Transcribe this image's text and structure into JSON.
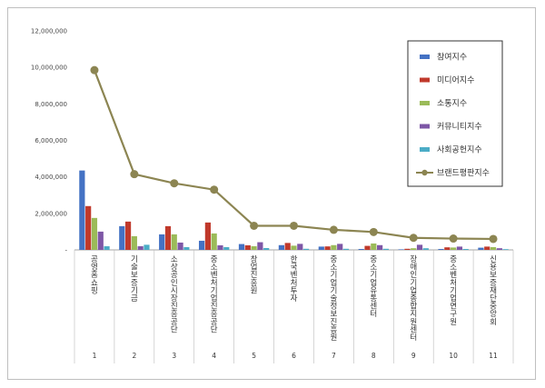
{
  "chart_data": {
    "type": "bar",
    "categories": [
      "공영홈쇼핑",
      "기술보증기금",
      "소상공인시장진흥공단",
      "중소벤처기업진흥공단",
      "창업진흥원",
      "한국벤처투자",
      "중소기업기술정보진흥원",
      "중소기업유통센터",
      "장애인기업종합지원센터",
      "중소벤처기업연구원",
      "신용보증재단중앙회"
    ],
    "indices": [
      "1",
      "2",
      "3",
      "4",
      "5",
      "6",
      "7",
      "8",
      "9",
      "10",
      "11"
    ],
    "y_ticks": [
      "-",
      "2,000,000",
      "4,000,000",
      "6,000,000",
      "8,000,000",
      "10,000,000",
      "12,000,000"
    ],
    "ylim": [
      0,
      12000000
    ],
    "legend_position": "top-right",
    "series": [
      {
        "name": "참여지수",
        "kind": "bar",
        "color": "#4472c4",
        "values": [
          4350000,
          1300000,
          850000,
          500000,
          320000,
          260000,
          180000,
          50000,
          30000,
          50000,
          120000
        ]
      },
      {
        "name": "미디어지수",
        "kind": "bar",
        "color": "#c0392b",
        "values": [
          2400000,
          1550000,
          1300000,
          1500000,
          250000,
          380000,
          190000,
          220000,
          60000,
          140000,
          180000
        ]
      },
      {
        "name": "소통지수",
        "kind": "bar",
        "color": "#9bbb59",
        "values": [
          1750000,
          750000,
          850000,
          900000,
          200000,
          230000,
          260000,
          350000,
          90000,
          130000,
          150000
        ]
      },
      {
        "name": "커뮤니티지수",
        "kind": "bar",
        "color": "#7e57a6",
        "values": [
          1000000,
          200000,
          400000,
          250000,
          420000,
          330000,
          330000,
          260000,
          280000,
          180000,
          90000
        ]
      },
      {
        "name": "사회공헌지수",
        "kind": "bar",
        "color": "#4bacc6",
        "values": [
          200000,
          280000,
          150000,
          150000,
          100000,
          60000,
          60000,
          60000,
          90000,
          50000,
          40000
        ]
      },
      {
        "name": "브랜드평판지수",
        "kind": "line",
        "color": "#8c8552",
        "values": [
          9850000,
          4150000,
          3650000,
          3300000,
          1320000,
          1320000,
          1100000,
          980000,
          660000,
          620000,
          600000
        ]
      }
    ]
  }
}
